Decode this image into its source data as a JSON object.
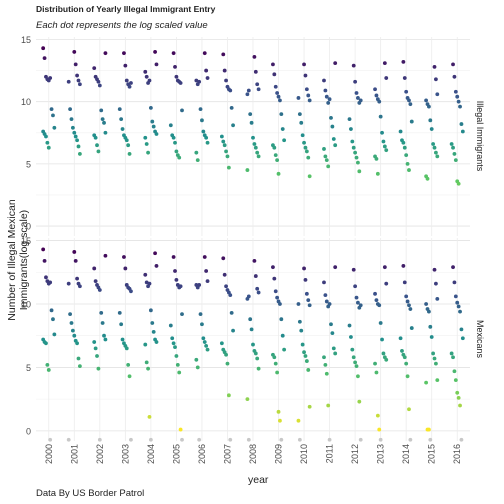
{
  "title": "Distribution of Yearly  Illegal Immigrant Entry",
  "subtitle": "Each dot represents the log scaled value",
  "caption": "Data By US Border Patrol",
  "chart_data": {
    "type": "scatter",
    "xlabel": "year",
    "ylabel": "Number of Illegal  Mexican Immigrants(log scale)",
    "x_categories": [
      "2000",
      "2001",
      "2002",
      "2003",
      "2004",
      "2005",
      "2006",
      "2007",
      "2008",
      "2009",
      "2010",
      "2011",
      "2012",
      "2013",
      "2014",
      "2015",
      "2016"
    ],
    "yticks": [
      0,
      5,
      10,
      15
    ],
    "ylim": [
      -0.8,
      15.2
    ],
    "color_scale": "viridis",
    "color_range": [
      0,
      14.3
    ],
    "panels": [
      {
        "strip_label": "Illegal Immigrants",
        "values": [
          [
            14.3,
            13.5,
            12.0,
            11.8,
            11.7,
            11.9,
            9.4,
            8.9,
            7.9,
            7.6,
            7.4,
            7.2,
            6.7,
            6.3
          ],
          [
            14.0,
            13.0,
            12.1,
            11.7,
            11.4,
            11.6,
            9.4,
            8.6,
            7.9,
            7.5,
            7.2,
            6.9,
            6.4,
            5.8
          ],
          [
            13.9,
            12.7,
            12.0,
            11.8,
            11.6,
            11.3,
            9.3,
            8.6,
            8.3,
            7.5,
            7.3,
            7.1,
            6.5,
            6.0
          ],
          [
            13.9,
            12.9,
            11.7,
            11.4,
            11.2,
            11.5,
            9.4,
            8.6,
            7.8,
            7.3,
            7.1,
            6.9,
            6.5,
            5.8
          ],
          [
            14.0,
            13.0,
            12.4,
            12.0,
            11.5,
            11.7,
            9.5,
            8.4,
            8.0,
            7.6,
            7.4,
            7.1,
            6.6,
            5.9
          ],
          [
            13.9,
            12.8,
            12.0,
            11.7,
            11.6,
            11.5,
            9.3,
            8.1,
            7.3,
            7.1,
            6.7,
            6.0,
            5.7,
            5.5
          ],
          [
            13.9,
            12.5,
            11.9,
            11.7,
            11.4,
            11.6,
            9.4,
            8.5,
            7.6,
            7.3,
            7.1,
            6.7,
            5.9,
            5.3
          ],
          [
            13.8,
            12.5,
            11.7,
            11.2,
            11.0,
            10.9,
            9.5,
            8.1,
            7.2,
            6.8,
            6.5,
            6.0,
            5.6,
            4.7
          ],
          [
            13.6,
            12.4,
            11.4,
            11.0,
            10.6,
            10.9,
            9.0,
            8.3,
            7.1,
            6.6,
            6.3,
            5.9,
            5.6,
            4.5
          ],
          [
            13.0,
            12.2,
            11.2,
            10.7,
            10.4,
            10.1,
            9.0,
            7.8,
            6.9,
            6.5,
            6.3,
            5.7,
            5.3,
            4.2
          ],
          [
            13.0,
            12.1,
            11.0,
            10.5,
            10.1,
            10.3,
            9.0,
            8.3,
            7.3,
            6.7,
            6.3,
            6.0,
            5.5,
            4.0
          ],
          [
            13.1,
            11.7,
            10.9,
            10.4,
            9.9,
            10.2,
            8.7,
            8.0,
            7.0,
            6.5,
            6.2,
            5.6,
            5.3,
            4.8
          ],
          [
            12.9,
            11.6,
            10.7,
            10.3,
            9.9,
            10.1,
            8.6,
            7.8,
            6.8,
            6.3,
            5.9,
            5.5,
            5.1,
            4.4
          ],
          [
            13.1,
            11.9,
            11.0,
            10.5,
            10.2,
            10.0,
            8.8,
            7.5,
            6.8,
            6.4,
            6.1,
            5.6,
            5.4,
            4.2
          ],
          [
            13.2,
            11.9,
            10.8,
            10.3,
            10.1,
            9.8,
            8.4,
            7.6,
            6.9,
            6.7,
            6.3,
            5.7,
            5.0,
            4.5
          ],
          [
            12.8,
            11.8,
            10.6,
            10.1,
            9.8,
            9.6,
            8.5,
            7.8,
            6.6,
            6.3,
            5.9,
            5.6,
            4.0,
            3.8
          ],
          [
            13.0,
            12.0,
            10.8,
            10.4,
            10.0,
            9.6,
            8.2,
            7.6,
            6.6,
            6.3,
            5.8,
            5.3,
            3.6,
            3.4
          ]
        ]
      },
      {
        "strip_label": "Mexicans",
        "values": [
          [
            14.3,
            13.4,
            12.1,
            11.8,
            11.6,
            11.7,
            9.5,
            8.8,
            7.6,
            7.2,
            7.0,
            6.9,
            5.2,
            4.8,
            -0.7
          ],
          [
            14.1,
            13.4,
            12.0,
            11.6,
            11.4,
            11.6,
            9.2,
            8.5,
            7.9,
            7.5,
            7.1,
            6.9,
            5.7,
            5.1,
            -0.7
          ],
          [
            13.8,
            12.8,
            11.8,
            11.5,
            11.3,
            11.1,
            9.3,
            8.5,
            7.5,
            7.2,
            7.0,
            6.5,
            5.9,
            4.9,
            -0.7
          ],
          [
            13.7,
            12.8,
            11.5,
            11.3,
            11.2,
            11.0,
            9.3,
            8.4,
            7.2,
            6.9,
            6.7,
            6.5,
            5.2,
            4.3,
            -0.7
          ],
          [
            14.0,
            13.0,
            12.3,
            11.7,
            11.4,
            11.6,
            9.5,
            8.5,
            7.8,
            7.2,
            7.0,
            6.8,
            5.4,
            4.9,
            1.1,
            -0.7
          ],
          [
            13.7,
            12.6,
            11.9,
            11.5,
            11.3,
            11.4,
            9.2,
            8.3,
            7.3,
            6.9,
            6.6,
            5.9,
            5.2,
            4.6,
            0.1,
            -0.7
          ],
          [
            13.7,
            12.6,
            11.8,
            11.5,
            11.3,
            11.5,
            9.2,
            8.4,
            7.3,
            7.0,
            6.7,
            6.4,
            5.6,
            5.0,
            -0.7
          ],
          [
            13.6,
            12.3,
            11.4,
            11.1,
            10.9,
            10.7,
            9.3,
            7.9,
            6.9,
            6.4,
            6.2,
            6.0,
            5.3,
            2.8,
            -0.7
          ],
          [
            13.4,
            12.2,
            11.2,
            10.9,
            10.4,
            10.6,
            8.8,
            8.0,
            6.8,
            6.3,
            6.1,
            5.7,
            4.9,
            2.5,
            -0.7
          ],
          [
            12.9,
            12.0,
            11.0,
            10.5,
            10.2,
            10.0,
            8.8,
            7.5,
            6.4,
            6.0,
            5.8,
            5.3,
            4.6,
            1.5,
            0.8,
            -0.7
          ],
          [
            12.8,
            11.9,
            10.8,
            10.3,
            9.9,
            10.0,
            8.6,
            7.9,
            6.8,
            6.2,
            5.9,
            5.5,
            4.8,
            1.9,
            0.8,
            -0.7
          ],
          [
            12.9,
            11.7,
            10.7,
            10.2,
            9.8,
            10.0,
            8.4,
            7.7,
            6.5,
            6.1,
            5.8,
            5.2,
            4.5,
            2.0,
            -0.7
          ],
          [
            12.7,
            11.4,
            10.5,
            10.1,
            9.7,
            9.9,
            8.3,
            7.4,
            6.4,
            5.8,
            5.4,
            5.1,
            4.3,
            2.3,
            -0.7
          ],
          [
            12.9,
            11.6,
            10.8,
            10.3,
            10.0,
            9.9,
            8.5,
            7.2,
            6.1,
            5.8,
            5.6,
            5.3,
            4.6,
            1.2,
            0.1,
            -0.7
          ],
          [
            13.0,
            11.7,
            10.6,
            10.2,
            9.9,
            9.6,
            8.1,
            7.3,
            6.3,
            6.0,
            5.8,
            5.3,
            4.3,
            1.7,
            -0.7
          ],
          [
            12.7,
            11.6,
            10.4,
            10.0,
            9.6,
            9.4,
            8.2,
            7.4,
            6.1,
            5.7,
            5.3,
            4.0,
            3.8,
            0.1,
            0.1,
            -0.7
          ],
          [
            12.9,
            11.7,
            10.6,
            10.1,
            9.8,
            9.4,
            8.0,
            7.3,
            6.1,
            5.8,
            4.7,
            4.0,
            3.0,
            2.6,
            2.0,
            -0.7
          ]
        ]
      }
    ]
  }
}
